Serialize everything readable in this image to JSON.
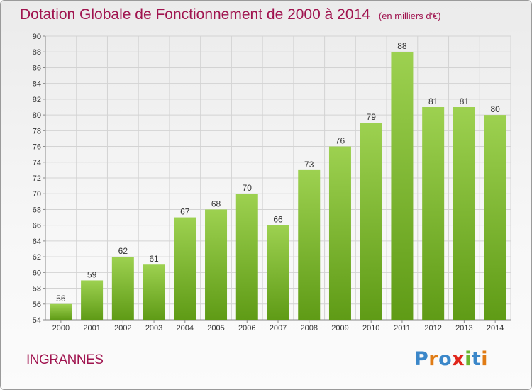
{
  "header": {
    "title": "Dotation Globale de Fonctionnement de 2000 à 2014",
    "subtitle": "(en milliers d'€)"
  },
  "footer": {
    "commune": "INGRANNES",
    "logo": "Proxiti"
  },
  "colors": {
    "title": "#a0144f",
    "bar_top": "#9dd150",
    "bar_bottom": "#5f9b16"
  },
  "chart_data": {
    "type": "bar",
    "title": "Dotation Globale de Fonctionnement de 2000 à 2014",
    "subtitle": "(en milliers d'€)",
    "categories": [
      "2000",
      "2001",
      "2002",
      "2003",
      "2004",
      "2005",
      "2006",
      "2007",
      "2008",
      "2009",
      "2010",
      "2011",
      "2012",
      "2013",
      "2014"
    ],
    "values": [
      56,
      59,
      62,
      61,
      67,
      68,
      70,
      66,
      73,
      76,
      79,
      88,
      81,
      81,
      80
    ],
    "ylim": [
      54,
      90
    ],
    "yticks": [
      54,
      56,
      58,
      60,
      62,
      64,
      66,
      68,
      70,
      72,
      74,
      76,
      78,
      80,
      82,
      84,
      86,
      88,
      90
    ],
    "grid": true,
    "data_labels": true
  }
}
